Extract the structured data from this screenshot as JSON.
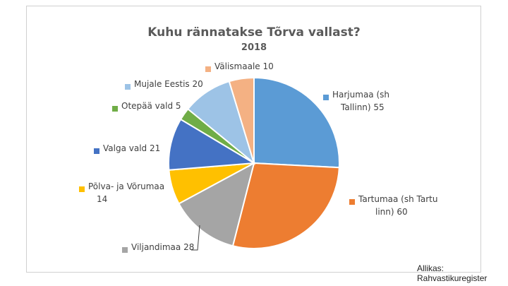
{
  "chart_data": {
    "type": "pie",
    "title": "Kuhu rännatakse Tõrva vallast?",
    "subtitle": "2018",
    "slices": [
      {
        "name": "Harjumaa (sh Tallinn)",
        "value": 55,
        "color": "#5B9BD5",
        "label_lines": [
          "Harjumaa (sh",
          "Tallinn) 55"
        ]
      },
      {
        "name": "Tartumaa (sh Tartu linn)",
        "value": 60,
        "color": "#ED7D31",
        "label_lines": [
          "Tartumaa (sh Tartu",
          "linn) 60"
        ]
      },
      {
        "name": "Viljandimaa",
        "value": 28,
        "color": "#A5A5A5",
        "label_lines": [
          "Viljandimaa  28"
        ]
      },
      {
        "name": "Põlva- ja Võrumaa",
        "value": 14,
        "color": "#FFC000",
        "label_lines": [
          "Põlva- ja Võrumaa",
          "14"
        ]
      },
      {
        "name": "Valga vald",
        "value": 21,
        "color": "#4472C4",
        "label_lines": [
          "Valga vald 21"
        ]
      },
      {
        "name": "Otepää vald",
        "value": 5,
        "color": "#70AD47",
        "label_lines": [
          "Otepää vald 5"
        ]
      },
      {
        "name": "Mujale Eestis",
        "value": 20,
        "color": "#9DC3E6",
        "label_lines": [
          "Mujale Eestis 20"
        ]
      },
      {
        "name": "Välismaale",
        "value": 10,
        "color": "#F4B183",
        "label_lines": [
          "Välismaale 10"
        ]
      }
    ]
  },
  "source": "Allikas: Rahvastikuregister"
}
